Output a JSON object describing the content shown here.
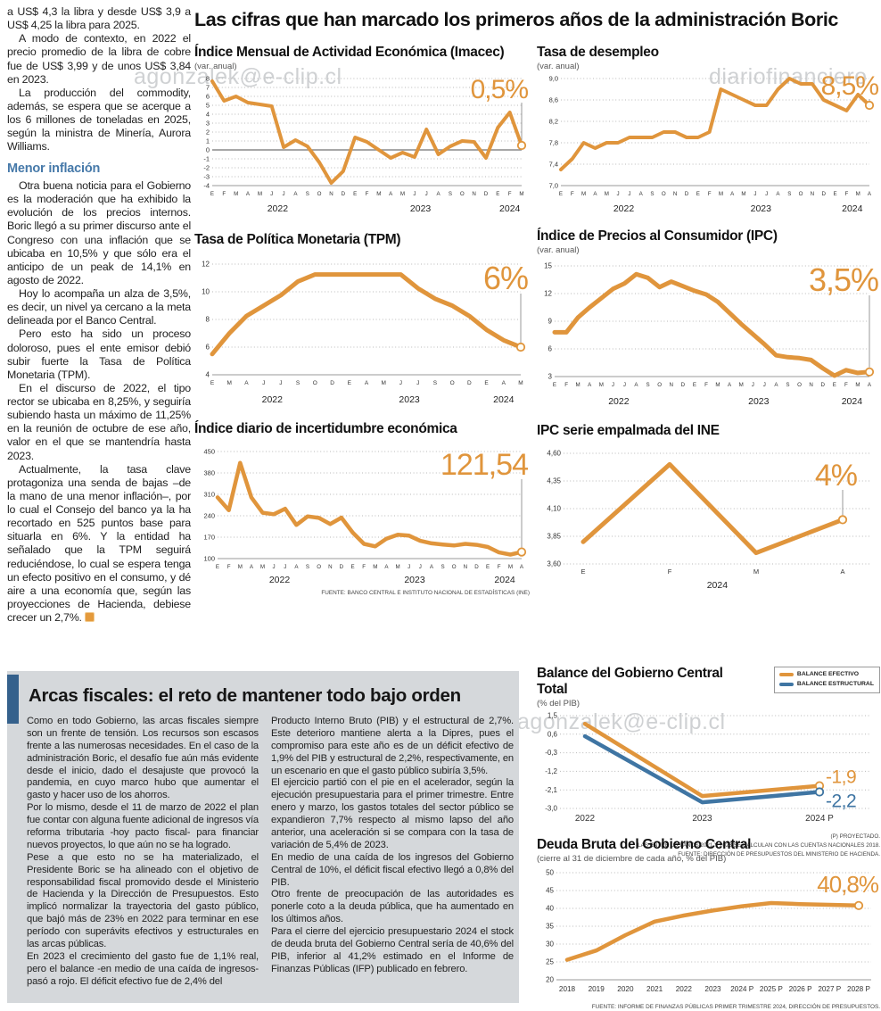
{
  "main_title": "Las cifras que han marcado los primeros años de la administración Boric",
  "colors": {
    "orange": "#E0953C",
    "blue": "#3F75A3",
    "subhead_blue": "#4679A9",
    "panel_bar_blue": "#35618C",
    "panel_gray": "#D5D8DB",
    "grid": "#B9B9B9",
    "axis_text": "#333333"
  },
  "watermarks": {
    "email": "agonzalek@e-clip.cl",
    "site": "diariofinanciero",
    "combined": "diariofinanciero#agonzalek@e-clip.cl"
  },
  "article": {
    "paragraphs_top": [
      "a US$ 4,3 la libra y desde US$ 3,9 a US$ 4,25 la libra para 2025.",
      "A modo de contexto, en 2022 el precio promedio de la libra de cobre fue de US$ 3,99 y de unos US$ 3,84 en 2023.",
      "La producción del commodity, además, se espera que se acerque a los 6 millones de toneladas en 2025, según la ministra de Minería, Aurora Williams."
    ],
    "subhead": "Menor inflación",
    "paragraphs_bottom": [
      "Otra buena noticia para el Gobierno es la moderación que ha exhibido la evolución de los precios internos. Boric llegó a su primer discurso ante el Congreso con una inflación que se ubicaba en 10,5% y que sólo era el anticipo de un peak de 14,1% en agosto de 2022.",
      "Hoy lo acompaña un alza de 3,5%, es decir, un nivel ya cercano a la meta delineada por el Banco Central.",
      "Pero esto ha sido un proceso doloroso, pues el ente emisor debió subir fuerte la Tasa de Política Monetaria (TPM).",
      "En el discurso de 2022, el tipo rector se ubicaba en 8,25%, y seguiría subiendo hasta un máximo de 11,25% en la reunión de octubre de ese año, valor en el que se mantendría hasta 2023.",
      "Actualmente, la tasa clave protagoniza una senda de bajas –de la mano de una menor inflación–, por lo cual el Consejo del banco ya la ha recortado en 525 puntos base para situarla en 6%. Y la entidad ha señalado que la TPM seguirá reduciéndose, lo cual se espera tenga un efecto positivo en el consumo, y dé aire a una economía que, según las proyecciones de Hacienda, debiese crecer un 2,7%."
    ]
  },
  "chart_data": [
    {
      "id": "imacec",
      "type": "line",
      "title": "Índice Mensual de Actividad Económica (Imacec)",
      "subtitle": "(var. anual)",
      "big_value": "0,5%",
      "ylim": [
        -4,
        8
      ],
      "yticks": [
        {
          "v": 8,
          "t": "8"
        },
        {
          "v": 7,
          "t": "7"
        },
        {
          "v": 6,
          "t": "6"
        },
        {
          "v": 5,
          "t": "5"
        },
        {
          "v": 4,
          "t": "4"
        },
        {
          "v": 3,
          "t": "3"
        },
        {
          "v": 2,
          "t": "2"
        },
        {
          "v": 1,
          "t": "1"
        },
        {
          "v": 0,
          "t": "0"
        },
        {
          "v": -1,
          "t": "-1"
        },
        {
          "v": -2,
          "t": "-2"
        },
        {
          "v": -3,
          "t": "-3"
        },
        {
          "v": -4,
          "t": "-4"
        }
      ],
      "zero_line": true,
      "x": [
        "E",
        "F",
        "M",
        "A",
        "M",
        "J",
        "J",
        "A",
        "S",
        "O",
        "N",
        "D",
        "E",
        "F",
        "M",
        "A",
        "M",
        "J",
        "J",
        "A",
        "S",
        "O",
        "N",
        "D",
        "E",
        "F",
        "M"
      ],
      "years": [
        {
          "label": "2022",
          "at": 5.5
        },
        {
          "label": "2023",
          "at": 17.5
        },
        {
          "label": "2024",
          "at": 25
        }
      ],
      "values": [
        7.7,
        5.5,
        6.0,
        5.3,
        5.1,
        4.9,
        0.3,
        1.1,
        0.4,
        -1.4,
        -3.7,
        -2.4,
        1.4,
        0.9,
        0.0,
        -0.9,
        -0.3,
        -0.8,
        2.3,
        -0.5,
        0.4,
        1.0,
        0.9,
        -0.9,
        2.5,
        4.2,
        0.5
      ]
    },
    {
      "id": "desempleo",
      "type": "line",
      "title": "Tasa de desempleo",
      "subtitle": "(var. anual)",
      "big_value": "8,5%",
      "ylim": [
        7.0,
        9.0
      ],
      "yticks": [
        {
          "v": 9.0,
          "t": "9,0"
        },
        {
          "v": 8.6,
          "t": "8,6"
        },
        {
          "v": 8.2,
          "t": "8,2"
        },
        {
          "v": 7.8,
          "t": "7,8"
        },
        {
          "v": 7.4,
          "t": "7,4"
        },
        {
          "v": 7.0,
          "t": "7,0"
        }
      ],
      "x": [
        "E",
        "F",
        "M",
        "A",
        "M",
        "J",
        "J",
        "A",
        "S",
        "O",
        "N",
        "D",
        "E",
        "F",
        "M",
        "A",
        "M",
        "J",
        "J",
        "A",
        "S",
        "O",
        "N",
        "D",
        "E",
        "F",
        "M",
        "A"
      ],
      "years": [
        {
          "label": "2022",
          "at": 5.5
        },
        {
          "label": "2023",
          "at": 17.5
        },
        {
          "label": "2024",
          "at": 25.5
        }
      ],
      "values": [
        7.3,
        7.5,
        7.8,
        7.7,
        7.8,
        7.8,
        7.9,
        7.9,
        7.9,
        8.0,
        8.0,
        7.9,
        7.9,
        8.0,
        8.8,
        8.7,
        8.6,
        8.5,
        8.5,
        8.8,
        9.0,
        8.9,
        8.9,
        8.6,
        8.5,
        8.4,
        8.7,
        8.5
      ]
    },
    {
      "id": "tpm",
      "type": "line",
      "title": "Tasa de Política Monetaria (TPM)",
      "subtitle": "",
      "big_value": "6%",
      "ylim": [
        4,
        12
      ],
      "yticks": [
        {
          "v": 12,
          "t": "12"
        },
        {
          "v": 10,
          "t": "10"
        },
        {
          "v": 8,
          "t": "8"
        },
        {
          "v": 6,
          "t": "6"
        },
        {
          "v": 4,
          "t": "4"
        }
      ],
      "x": [
        "E",
        "M",
        "A",
        "J",
        "J",
        "S",
        "O",
        "D",
        "E",
        "A",
        "M",
        "J",
        "J",
        "S",
        "O",
        "D",
        "E",
        "A",
        "M"
      ],
      "years": [
        {
          "label": "2022",
          "at": 3.5
        },
        {
          "label": "2023",
          "at": 11.5
        },
        {
          "label": "2024",
          "at": 17
        }
      ],
      "values": [
        5.5,
        7.0,
        8.25,
        9.0,
        9.75,
        10.75,
        11.25,
        11.25,
        11.25,
        11.25,
        11.25,
        11.25,
        10.25,
        9.5,
        9.0,
        8.25,
        7.25,
        6.5,
        6.0
      ]
    },
    {
      "id": "ipc",
      "type": "line",
      "title": "Índice de Precios al Consumidor (IPC)",
      "subtitle": "(var. anual)",
      "big_value": "3,5%",
      "ylim": [
        3,
        15
      ],
      "yticks": [
        {
          "v": 15,
          "t": "15"
        },
        {
          "v": 12,
          "t": "12"
        },
        {
          "v": 9,
          "t": "9"
        },
        {
          "v": 6,
          "t": "6"
        },
        {
          "v": 3,
          "t": "3"
        }
      ],
      "x": [
        "E",
        "F",
        "M",
        "A",
        "M",
        "J",
        "J",
        "A",
        "S",
        "O",
        "N",
        "D",
        "E",
        "F",
        "M",
        "A",
        "M",
        "J",
        "J",
        "A",
        "S",
        "O",
        "N",
        "D",
        "E",
        "F",
        "M",
        "A"
      ],
      "years": [
        {
          "label": "2022",
          "at": 5.5
        },
        {
          "label": "2023",
          "at": 17.5
        },
        {
          "label": "2024",
          "at": 25.5
        }
      ],
      "values": [
        7.8,
        7.8,
        9.4,
        10.5,
        11.5,
        12.5,
        13.1,
        14.1,
        13.7,
        12.7,
        13.3,
        12.8,
        12.3,
        11.9,
        11.1,
        9.9,
        8.7,
        7.6,
        6.5,
        5.3,
        5.1,
        5.0,
        4.8,
        3.9,
        3.1,
        3.7,
        3.4,
        3.5
      ]
    },
    {
      "id": "incertidumbre",
      "type": "line",
      "title": "Índice diario de incertidumbre económica",
      "subtitle": "",
      "big_value": "121,54",
      "ylim": [
        100,
        450
      ],
      "yticks": [
        {
          "v": 450,
          "t": "450"
        },
        {
          "v": 380,
          "t": "380"
        },
        {
          "v": 310,
          "t": "310"
        },
        {
          "v": 240,
          "t": "240"
        },
        {
          "v": 170,
          "t": "170"
        },
        {
          "v": 100,
          "t": "100"
        }
      ],
      "x": [
        "E",
        "F",
        "M",
        "A",
        "M",
        "J",
        "J",
        "A",
        "S",
        "O",
        "N",
        "D",
        "E",
        "F",
        "M",
        "A",
        "M",
        "J",
        "J",
        "A",
        "S",
        "O",
        "N",
        "D",
        "E",
        "F",
        "M",
        "A"
      ],
      "years": [
        {
          "label": "2022",
          "at": 5.5
        },
        {
          "label": "2023",
          "at": 17.5
        },
        {
          "label": "2024",
          "at": 25.5
        }
      ],
      "values": [
        300,
        258,
        413,
        300,
        250,
        245,
        263,
        210,
        238,
        233,
        213,
        234,
        185,
        148,
        140,
        165,
        178,
        175,
        158,
        150,
        146,
        143,
        148,
        145,
        138,
        120,
        113,
        121.54
      ],
      "source": "FUENTE: BANCO CENTRAL E INSTITUTO NACIONAL DE ESTADÍSTICAS (INE)"
    },
    {
      "id": "ipc_empalmada",
      "type": "line",
      "title": "IPC serie empalmada del INE",
      "subtitle": "",
      "big_value": "4%",
      "ylim": [
        3.6,
        4.6
      ],
      "yticks": [
        {
          "v": 4.6,
          "t": "4,60"
        },
        {
          "v": 4.35,
          "t": "4,35"
        },
        {
          "v": 4.1,
          "t": "4,10"
        },
        {
          "v": 3.85,
          "t": "3,85"
        },
        {
          "v": 3.6,
          "t": "3,60"
        }
      ],
      "x": [
        "E",
        "F",
        "M",
        "A"
      ],
      "years": [
        {
          "label": "2024",
          "at": 1.55
        }
      ],
      "values": [
        3.8,
        4.5,
        3.7,
        4.0
      ]
    },
    {
      "id": "balance",
      "type": "line",
      "title": "Balance del Gobierno Central Total",
      "subtitle": "(% del PIB)",
      "legend": [
        {
          "label": "BALANCE EFECTIVO",
          "color": "#E0953C"
        },
        {
          "label": "BALANCE ESTRUCTURAL",
          "color": "#3F75A3"
        }
      ],
      "ylim": [
        -3.0,
        1.5
      ],
      "yticks": [
        {
          "v": 1.5,
          "t": "1,5"
        },
        {
          "v": 0.6,
          "t": "0,6"
        },
        {
          "v": -0.3,
          "t": "-0,3"
        },
        {
          "v": -1.2,
          "t": "-1,2"
        },
        {
          "v": -2.1,
          "t": "-2,1"
        },
        {
          "v": -3.0,
          "t": "-3,0"
        }
      ],
      "x": [
        "2022",
        "2023",
        "2024 P"
      ],
      "series": [
        {
          "name": "BALANCE EFECTIVO",
          "values": [
            1.1,
            -2.4,
            -1.9
          ],
          "end_label": "-1,9"
        },
        {
          "name": "BALANCE ESTRUCTURAL",
          "values": [
            0.5,
            -2.7,
            -2.2
          ],
          "end_label": "-2,2"
        }
      ],
      "notes": [
        "(P) PROYECTADO.",
        "LAS ENTRE LOS AÑOS 2021 Y 2023 SE CALCULAN  CON LAS CUENTAS NACIONALES 2018.",
        "FUENTE: DIRECCIÓN DE PRESUPUESTOS DEL MINISTERIO DE HACIENDA."
      ]
    },
    {
      "id": "deuda",
      "type": "line",
      "title": "Deuda Bruta del Gobierno Central",
      "subtitle": "(cierre al 31 de diciembre de cada año, % del PIB)",
      "big_value": "40,8%",
      "ylim": [
        20,
        50
      ],
      "yticks": [
        {
          "v": 50,
          "t": "50"
        },
        {
          "v": 45,
          "t": "45"
        },
        {
          "v": 40,
          "t": "40"
        },
        {
          "v": 35,
          "t": "35"
        },
        {
          "v": 30,
          "t": "30"
        },
        {
          "v": 25,
          "t": "25"
        },
        {
          "v": 20,
          "t": "20"
        }
      ],
      "x": [
        "2018",
        "2019",
        "2020",
        "2021",
        "2022",
        "2023",
        "2024 P",
        "2025 P",
        "2026 P",
        "2027 P",
        "2028 P"
      ],
      "values": [
        25.6,
        28.2,
        32.5,
        36.3,
        38.0,
        39.4,
        40.6,
        41.5,
        41.2,
        41.0,
        40.8
      ],
      "source": "FUENTE: INFORME DE FINANZAS PÚBLICAS PRIMER TRIMESTRE 2024, DIRECCIÓN DE PRESUPUESTOS."
    }
  ],
  "fiscal": {
    "heading": "Arcas fiscales: el reto de mantener todo bajo orden",
    "col1": [
      "Como en todo Gobierno, las arcas fiscales siempre son un frente de tensión. Los recursos son escasos frente a las numerosas necesidades. En el caso de la administración Boric, el desafío fue aún más evidente desde el inicio, dado el desajuste que provocó la pandemia, en cuyo marco hubo que aumentar el gasto y hacer uso de los ahorros.",
      "Por lo mismo, desde el 11 de marzo de 2022 el plan fue contar con alguna fuente adicional de ingresos vía reforma tributaria -hoy pacto fiscal- para financiar nuevos proyectos, lo que aún no se ha logrado.",
      "Pese a que esto no se ha materializado, el Presidente Boric se ha alineado con el objetivo de responsabilidad fiscal promovido desde el Ministerio de Hacienda y la Dirección de Presupuestos. Esto implicó normalizar la trayectoria del gasto público, que bajó más de 23% en 2022 para terminar en ese período con superávits efectivos y estructurales en las arcas públicas.",
      "En 2023 el crecimiento del gasto fue de 1,1% real, pero el balance -en medio de una caída de ingresos-  pasó a rojo. El déficit efectivo fue de 2,4% del"
    ],
    "col2": [
      "Producto Interno Bruto (PIB) y el estructural de 2,7%. Este deterioro mantiene alerta a la Dipres, pues el compromiso para este año es de un déficit efectivo de 1,9% del PIB y estructural de 2,2%, respectivamente, en un escenario en que el gasto público subiría 3,5%.",
      "El ejercicio partió con el pie en el acelerador, según la ejecución presupuestaria para el primer trimestre. Entre enero y marzo, los gastos totales del sector público se expandieron 7,7% respecto al mismo lapso del año anterior, una aceleración si se compara con la tasa de variación de 5,4% de 2023.",
      "En medio de una caída de los ingresos del Gobierno Central de 10%, el déficit fiscal efectivo llegó a 0,8% del PIB.",
      "Otro frente de preocupación de las autoridades es ponerle coto a la deuda pública, que ha aumentado en los últimos años.",
      "Para el cierre del ejercicio presupuestario 2024 el stock de deuda bruta del Gobierno Central sería de 40,6% del PIB, inferior al 41,2% estimado en el Informe de Finanzas Públicas (IFP) publicado en febrero."
    ]
  }
}
